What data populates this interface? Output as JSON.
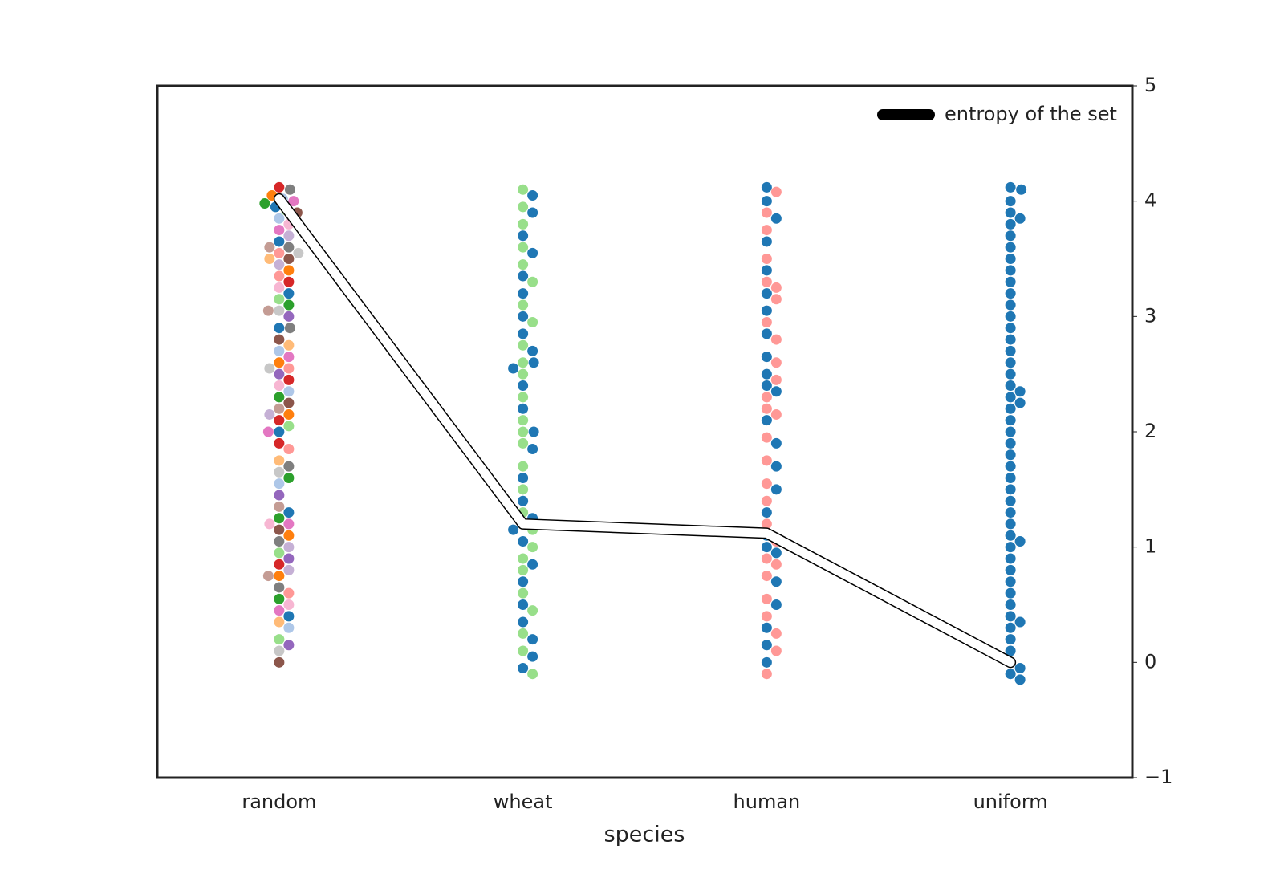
{
  "chart_data": {
    "type": "swarm",
    "xlabel": "species",
    "categories": [
      "random",
      "wheat",
      "human",
      "uniform"
    ],
    "ylim": [
      -1,
      5
    ],
    "yticks": [
      {
        "value": -1,
        "label": "−1"
      },
      0,
      1,
      2,
      3,
      4,
      5
    ],
    "y_axis_side": "right",
    "legend": "upper right",
    "line": {
      "name": "entropy of the set",
      "color": "#000000",
      "values": [
        4.02,
        1.2,
        1.12,
        0.0
      ]
    },
    "swarms": [
      {
        "groups": [
          {
            "color": "#1f77b4",
            "values": [
              3.65,
              3.2,
              2.9,
              1.3,
              0.4,
              2.0,
              3.95
            ]
          },
          {
            "color": "#ff7f0e",
            "values": [
              4.05,
              2.15,
              1.1,
              0.75,
              3.4,
              2.6
            ]
          },
          {
            "color": "#2ca02c",
            "values": [
              3.98,
              1.25,
              2.3,
              0.55,
              3.1,
              1.6
            ]
          },
          {
            "color": "#d62728",
            "values": [
              4.12,
              2.1,
              3.3,
              1.9,
              0.85,
              2.45
            ]
          },
          {
            "color": "#9467bd",
            "values": [
              2.5,
              1.45,
              0.15,
              3.0,
              0.9
            ]
          },
          {
            "color": "#8c564b",
            "values": [
              3.9,
              3.5,
              2.8,
              1.15,
              0.0,
              2.25
            ]
          },
          {
            "color": "#e377c2",
            "values": [
              4.0,
              3.75,
              2.0,
              1.2,
              0.45,
              2.65
            ]
          },
          {
            "color": "#7f7f7f",
            "values": [
              4.1,
              3.6,
              1.05,
              0.65,
              1.7,
              2.9
            ]
          },
          {
            "color": "#aec7e8",
            "values": [
              4.02,
              3.85,
              2.35,
              1.55,
              0.3,
              2.7
            ]
          },
          {
            "color": "#98df8a",
            "values": [
              3.92,
              3.15,
              2.05,
              0.95,
              0.2
            ]
          },
          {
            "color": "#ff9896",
            "values": [
              3.55,
              1.85,
              2.55,
              0.6,
              3.35
            ]
          },
          {
            "color": "#c5b0d5",
            "values": [
              3.7,
              1.0,
              0.8,
              2.15,
              3.45
            ]
          },
          {
            "color": "#c7c7c7",
            "values": [
              3.55,
              2.55,
              1.65,
              0.1,
              3.05
            ]
          },
          {
            "color": "#f7b6d2",
            "values": [
              3.25,
              1.2,
              2.4,
              0.5,
              3.8
            ]
          },
          {
            "color": "#c49c94",
            "values": [
              3.05,
              0.75,
              2.2,
              1.35,
              3.6
            ]
          },
          {
            "color": "#ffbb78",
            "values": [
              2.75,
              1.75,
              0.35,
              3.5
            ]
          }
        ]
      },
      {
        "groups": [
          {
            "color": "#98df8a",
            "values": [
              4.1,
              3.95,
              3.8,
              3.6,
              3.45,
              3.1,
              2.95,
              2.75,
              2.5,
              2.3,
              2.1,
              1.9,
              1.7,
              1.5,
              1.3,
              1.2,
              1.0,
              0.8,
              0.6,
              0.45,
              0.25,
              0.1,
              -0.1,
              2.0,
              1.15,
              0.9,
              3.3,
              2.6
            ]
          },
          {
            "color": "#1f77b4",
            "values": [
              4.05,
              3.9,
              3.7,
              3.55,
              3.35,
              3.0,
              2.85,
              2.7,
              2.55,
              2.4,
              2.2,
              2.0,
              1.85,
              1.6,
              1.4,
              1.25,
              1.05,
              0.85,
              0.7,
              0.5,
              0.35,
              0.2,
              0.05,
              -0.05,
              3.2,
              2.6,
              1.15
            ]
          }
        ]
      },
      {
        "groups": [
          {
            "color": "#ff9896",
            "values": [
              4.08,
              3.9,
              3.75,
              3.5,
              3.3,
              3.15,
              2.95,
              2.8,
              2.6,
              2.45,
              2.3,
              2.15,
              1.95,
              1.75,
              1.55,
              1.4,
              1.2,
              1.05,
              0.9,
              0.75,
              0.55,
              0.4,
              0.25,
              0.1,
              -0.1,
              2.2,
              0.85,
              3.25
            ]
          },
          {
            "color": "#1f77b4",
            "values": [
              4.12,
              4.0,
              3.85,
              3.65,
              3.4,
              3.2,
              3.05,
              2.85,
              2.65,
              2.5,
              2.35,
              2.1,
              1.9,
              1.7,
              1.5,
              1.3,
              1.1,
              0.95,
              0.7,
              0.5,
              0.3,
              0.15,
              0.0,
              2.4,
              1.0
            ]
          }
        ]
      },
      {
        "groups": [
          {
            "color": "#1f77b4",
            "values": [
              4.12,
              4.1,
              4.0,
              3.9,
              3.8,
              3.7,
              3.6,
              3.5,
              3.4,
              3.3,
              3.2,
              3.1,
              3.0,
              2.9,
              2.8,
              2.7,
              2.6,
              2.5,
              2.4,
              2.35,
              2.3,
              2.2,
              2.1,
              2.0,
              1.9,
              1.8,
              1.7,
              1.6,
              1.5,
              1.4,
              1.3,
              1.2,
              1.1,
              1.0,
              0.9,
              0.8,
              0.7,
              0.6,
              0.5,
              0.4,
              0.3,
              0.2,
              0.1,
              0.0,
              -0.05,
              -0.1,
              -0.15,
              3.85,
              2.25,
              1.05,
              0.35
            ]
          }
        ]
      }
    ]
  }
}
